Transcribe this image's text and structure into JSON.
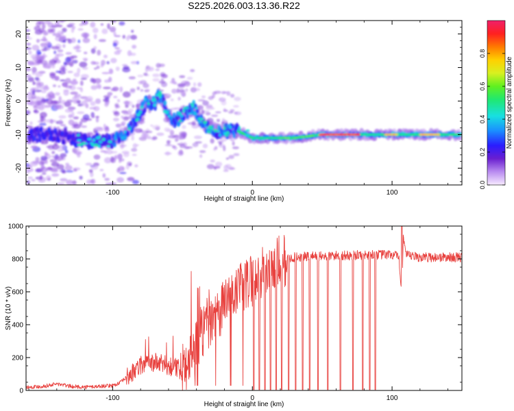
{
  "title": "S225.2026.003.13.36.R22",
  "colors": {
    "line": "#e8423f",
    "frame": "#000000"
  },
  "chart_data": [
    {
      "type": "heatmap",
      "xlabel": "Height of straight line (km)",
      "ylabel": "Frequency (Hz)",
      "xlim": [
        -162,
        150
      ],
      "ylim": [
        -25,
        24
      ],
      "xticks": [
        {
          "v": -100,
          "label": "-100"
        },
        {
          "v": 0,
          "label": "0"
        },
        {
          "v": 100,
          "label": "100"
        }
      ],
      "yticks": [
        {
          "v": 20,
          "label": "20"
        },
        {
          "v": 10,
          "label": "10"
        },
        {
          "v": 0,
          "label": "0"
        },
        {
          "v": -10,
          "label": "-10"
        },
        {
          "v": -20,
          "label": "-20"
        }
      ],
      "ridge": {
        "x": [
          -160,
          -150,
          -140,
          -130,
          -120,
          -110,
          -100,
          -92,
          -85,
          -80,
          -75,
          -70,
          -67,
          -64,
          -60,
          -55,
          -50,
          -45,
          -42,
          -38,
          -35,
          -30,
          -25,
          -20,
          -15,
          -10,
          -5,
          0,
          10,
          30,
          50,
          70,
          90,
          100,
          120,
          148
        ],
        "y": [
          -10,
          -10,
          -10,
          -11,
          -12,
          -12,
          -12,
          -10,
          -7,
          -3,
          0,
          -1,
          2,
          0,
          -5,
          -6,
          -4,
          -3,
          -2,
          -5,
          -7,
          -8,
          -9,
          -9,
          -9,
          -9,
          -10,
          -11,
          -11,
          -11,
          -10,
          -10,
          -10,
          -10,
          -10,
          -10
        ]
      }
    },
    {
      "type": "colorbar",
      "label": "Normalized spectral amplitude",
      "range": [
        0,
        1
      ],
      "ticks": [
        {
          "v": 0.0,
          "label": "0.0"
        },
        {
          "v": 0.2,
          "label": "0.2"
        },
        {
          "v": 0.4,
          "label": "0.4"
        },
        {
          "v": 0.6,
          "label": "0.6"
        },
        {
          "v": 0.8,
          "label": "0.8"
        }
      ]
    },
    {
      "type": "line",
      "xlabel": "Height of straight line (km)",
      "ylabel": "SNR (10 * v/v)",
      "xlim": [
        -162,
        150
      ],
      "ylim": [
        0,
        1000
      ],
      "xticks": [
        {
          "v": -100,
          "label": "-100"
        },
        {
          "v": 0,
          "label": "0"
        },
        {
          "v": 100,
          "label": "100"
        }
      ],
      "yticks": [
        {
          "v": 0,
          "label": "0"
        },
        {
          "v": 200,
          "label": "200"
        },
        {
          "v": 400,
          "label": "400"
        },
        {
          "v": 600,
          "label": "600"
        },
        {
          "v": 800,
          "label": "800"
        },
        {
          "v": 1000,
          "label": "1000"
        }
      ],
      "series": [
        {
          "name": "SNR",
          "x": [
            -162,
            -150,
            -140,
            -130,
            -120,
            -110,
            -100,
            -95,
            -90,
            -85,
            -80,
            -75,
            -70,
            -65,
            -60,
            -55,
            -50,
            -45,
            -40,
            -35,
            -30,
            -25,
            -20,
            -15,
            -10,
            -5,
            0,
            5,
            10,
            15,
            20,
            25,
            30,
            40,
            50,
            60,
            70,
            80,
            90,
            100,
            103,
            105,
            107,
            108,
            110,
            120,
            130,
            140,
            150
          ],
          "y": [
            20,
            25,
            40,
            25,
            20,
            25,
            30,
            45,
            80,
            110,
            150,
            160,
            170,
            160,
            150,
            140,
            120,
            200,
            280,
            380,
            420,
            480,
            520,
            560,
            600,
            640,
            680,
            700,
            720,
            750,
            780,
            800,
            810,
            815,
            815,
            820,
            820,
            825,
            825,
            825,
            820,
            790,
            600,
            940,
            820,
            810,
            810,
            810,
            810
          ]
        }
      ],
      "spikes_down": [
        {
          "x": 1,
          "y": 0
        },
        {
          "x": 5,
          "y": 0
        },
        {
          "x": 9,
          "y": 0
        },
        {
          "x": 13,
          "y": 0
        },
        {
          "x": 17,
          "y": 0
        },
        {
          "x": 21,
          "y": 0
        },
        {
          "x": 26,
          "y": 0
        },
        {
          "x": 31,
          "y": 0
        },
        {
          "x": 36,
          "y": 0
        },
        {
          "x": 41,
          "y": 0
        },
        {
          "x": 47,
          "y": 0
        },
        {
          "x": 54,
          "y": 0
        },
        {
          "x": 63,
          "y": 0
        },
        {
          "x": 72,
          "y": 0
        },
        {
          "x": 79,
          "y": 0
        },
        {
          "x": 84,
          "y": 0
        },
        {
          "x": 88,
          "y": 0
        }
      ]
    }
  ]
}
